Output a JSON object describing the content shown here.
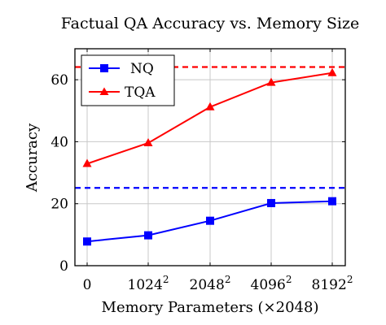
{
  "chart_data": {
    "type": "line",
    "title": "Factual QA Accuracy vs. Memory Size",
    "xlabel": "Memory Parameters (×2048)",
    "ylabel": "Accuracy",
    "categories": [
      {
        "base": "0",
        "exp": ""
      },
      {
        "base": "1024",
        "exp": "2"
      },
      {
        "base": "2048",
        "exp": "2"
      },
      {
        "base": "4096",
        "exp": "2"
      },
      {
        "base": "8192",
        "exp": "2"
      }
    ],
    "ylim": [
      0,
      70
    ],
    "yticks": [
      0,
      20,
      40,
      60
    ],
    "grid": true,
    "legend_position": "top-left",
    "series": [
      {
        "name": "NQ",
        "color": "#0000ff",
        "marker": "square",
        "values": [
          7.8,
          9.8,
          14.5,
          20.2,
          20.8
        ]
      },
      {
        "name": "TQA",
        "color": "#ff0000",
        "marker": "triangle",
        "values": [
          32.9,
          39.6,
          51.2,
          59.1,
          62.2
        ]
      }
    ],
    "reference_lines": [
      {
        "series": "NQ",
        "y": 25.1,
        "color": "#0000ff",
        "style": "dashed"
      },
      {
        "series": "TQA",
        "y": 64.1,
        "color": "#ff0000",
        "style": "dashed"
      }
    ]
  }
}
